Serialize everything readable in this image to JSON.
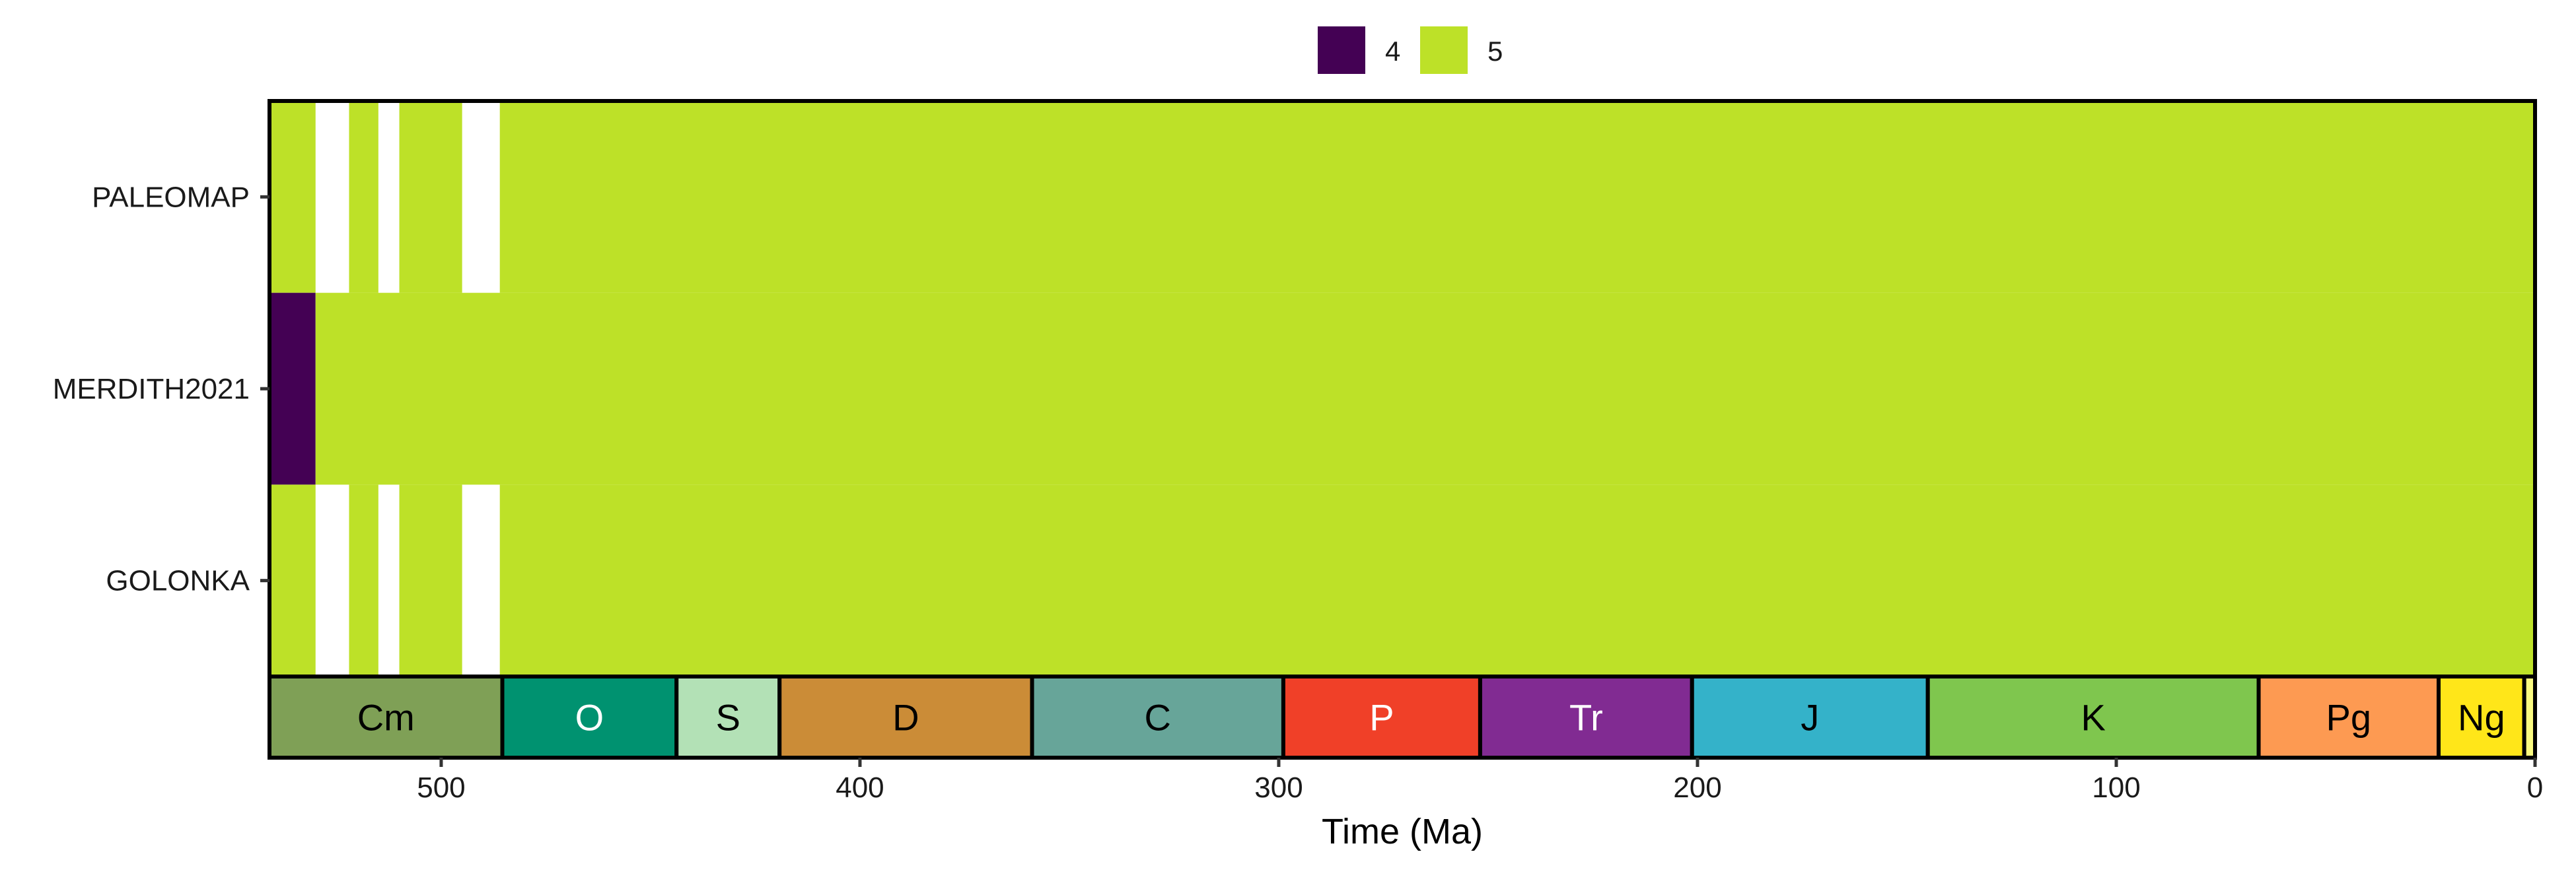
{
  "chart_data": {
    "type": "heatmap",
    "title": "",
    "xlabel": "Time (Ma)",
    "ylabel": "",
    "xlim": [
      541,
      0
    ],
    "x_ticks": [
      500,
      400,
      300,
      200,
      100,
      0
    ],
    "x_tick_labels": [
      "500",
      "400",
      "300",
      "200",
      "100",
      "0"
    ],
    "rows": [
      "PALEOMAP",
      "MERDITH2021",
      "GOLONKA"
    ],
    "legend": {
      "position": "top",
      "entries": [
        {
          "label": "4",
          "color": "#440154"
        },
        {
          "label": "5",
          "color": "#bde128"
        }
      ]
    },
    "row_segments": {
      "PALEOMAP": [
        {
          "from": 541,
          "to": 530,
          "value": "5"
        },
        {
          "from": 522,
          "to": 515,
          "value": "5"
        },
        {
          "from": 510,
          "to": 495,
          "value": "5"
        },
        {
          "from": 486,
          "to": 0,
          "value": "5"
        }
      ],
      "MERDITH2021": [
        {
          "from": 541,
          "to": 530,
          "value": "4"
        },
        {
          "from": 530,
          "to": 0,
          "value": "5"
        }
      ],
      "GOLONKA": [
        {
          "from": 541,
          "to": 530,
          "value": "5"
        },
        {
          "from": 522,
          "to": 515,
          "value": "5"
        },
        {
          "from": 510,
          "to": 495,
          "value": "5"
        },
        {
          "from": 486,
          "to": 0,
          "value": "5"
        }
      ]
    },
    "periods": [
      {
        "label": "Cm",
        "from": 541,
        "to": 485.4,
        "color": "#7fa056",
        "text_color": "#000000"
      },
      {
        "label": "O",
        "from": 485.4,
        "to": 443.8,
        "color": "#009270",
        "text_color": "#ffffff"
      },
      {
        "label": "S",
        "from": 443.8,
        "to": 419.2,
        "color": "#b3e1b6",
        "text_color": "#000000"
      },
      {
        "label": "D",
        "from": 419.2,
        "to": 358.9,
        "color": "#cb8c37",
        "text_color": "#000000"
      },
      {
        "label": "C",
        "from": 358.9,
        "to": 298.9,
        "color": "#67a599",
        "text_color": "#000000"
      },
      {
        "label": "P",
        "from": 298.9,
        "to": 251.9,
        "color": "#f04028",
        "text_color": "#ffffff"
      },
      {
        "label": "Tr",
        "from": 251.9,
        "to": 201.3,
        "color": "#812b92",
        "text_color": "#ffffff"
      },
      {
        "label": "J",
        "from": 201.3,
        "to": 145.0,
        "color": "#34b2c9",
        "text_color": "#000000"
      },
      {
        "label": "K",
        "from": 145.0,
        "to": 66.0,
        "color": "#7fc64e",
        "text_color": "#000000"
      },
      {
        "label": "Pg",
        "from": 66.0,
        "to": 23.03,
        "color": "#fd9a52",
        "text_color": "#000000"
      },
      {
        "label": "Ng",
        "from": 23.03,
        "to": 2.58,
        "color": "#ffe619",
        "text_color": "#000000"
      },
      {
        "label": "",
        "from": 2.58,
        "to": 0,
        "color": "#f9f97f",
        "text_color": "#000000"
      }
    ]
  }
}
